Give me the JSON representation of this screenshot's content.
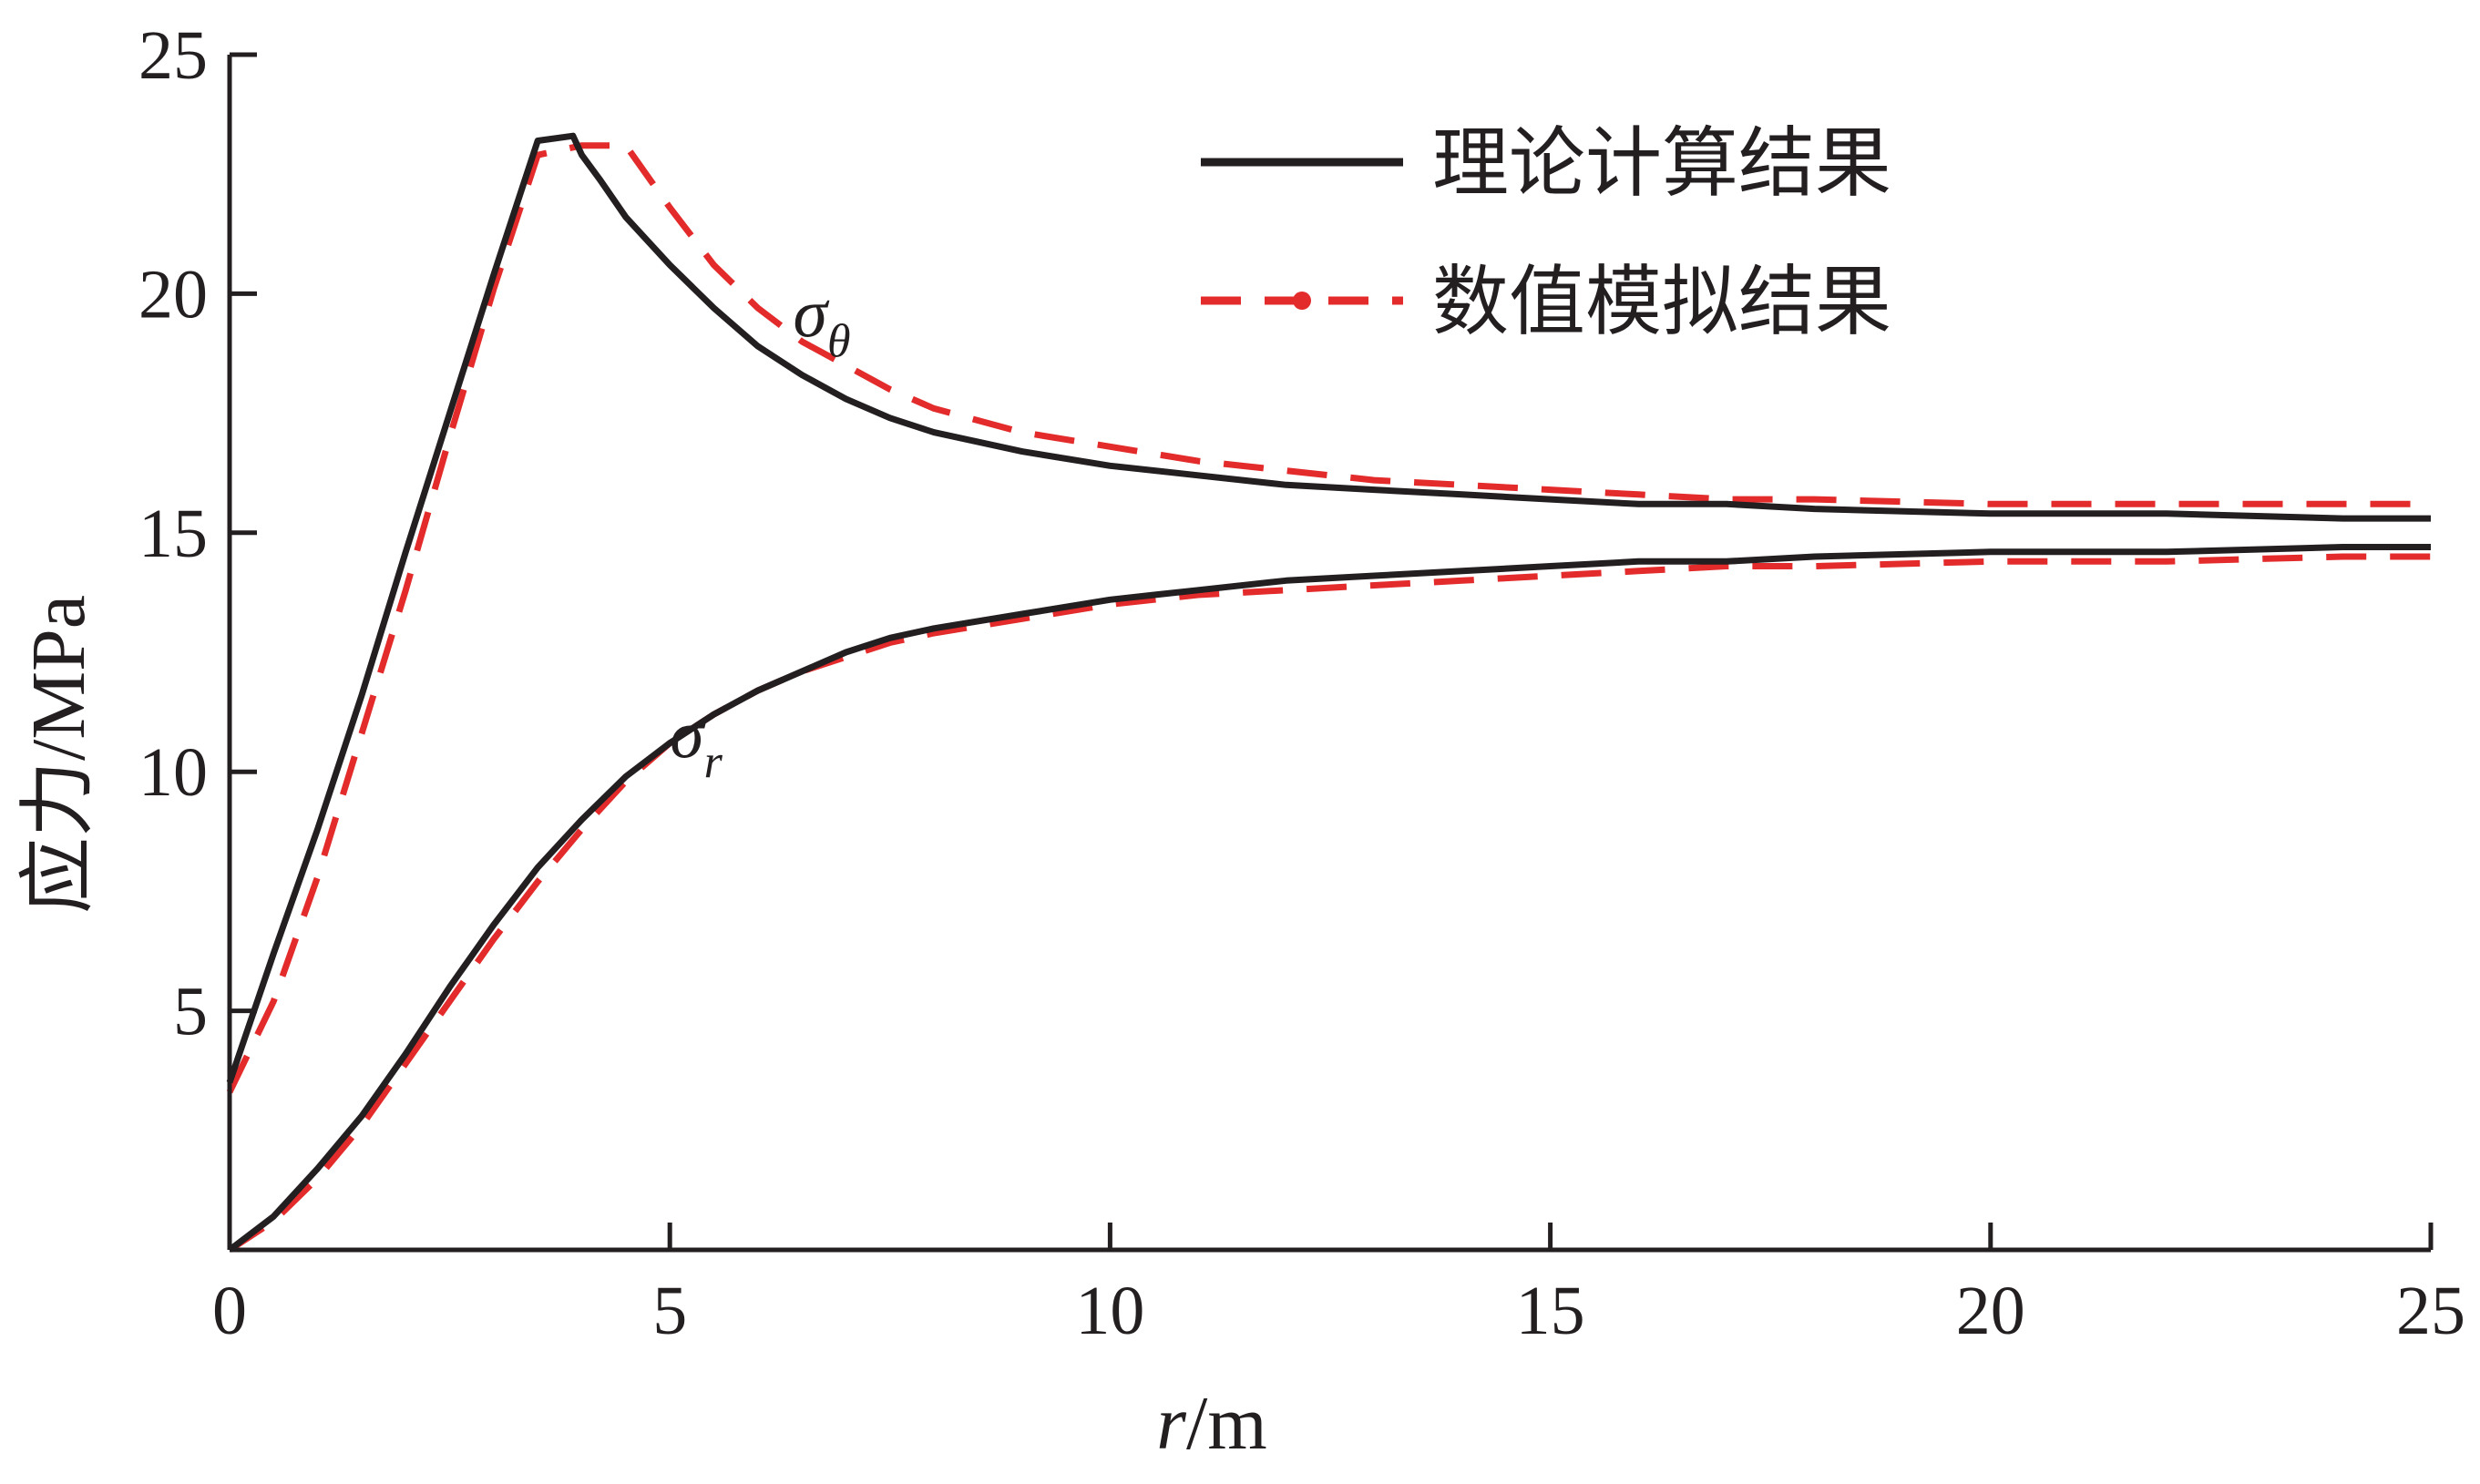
{
  "chart_data": {
    "type": "line",
    "xlabel_var": "r",
    "xlabel_unit": "/m",
    "ylabel": "应力/MPa",
    "xlim": [
      0,
      25
    ],
    "ylim": [
      0,
      25
    ],
    "xticks": [
      0,
      5,
      10,
      15,
      20,
      25
    ],
    "yticks": [
      5,
      10,
      15,
      20,
      25
    ],
    "grid": false,
    "legend_position": "top-right",
    "legend": {
      "theory": "理论计算结果",
      "numerical": "数值模拟结果"
    },
    "colors": {
      "theory": "#231f20",
      "numerical": "#e32b2b"
    },
    "annotations": [
      {
        "base": "σ",
        "sub": "θ",
        "x": 6.4,
        "y": 19.1
      },
      {
        "base": "σ",
        "sub": "r",
        "x": 5.0,
        "y": 10.3
      }
    ],
    "series": [
      {
        "key": "theory",
        "quantity": "sigma_theta",
        "x": [
          0,
          0.5,
          1.0,
          1.5,
          2.0,
          2.5,
          3.0,
          3.5,
          3.9,
          4.0,
          4.2,
          4.5,
          5.0,
          5.5,
          6.0,
          6.5,
          7.0,
          7.5,
          8.0,
          9.0,
          10.0,
          11.0,
          12.0,
          13.0,
          14.0,
          15.0,
          16.0,
          17.0,
          18.0,
          20.0,
          22.0,
          24.0,
          25.0
        ],
        "y": [
          3.5,
          6.2,
          8.8,
          11.6,
          14.6,
          17.5,
          20.4,
          23.2,
          23.3,
          22.9,
          22.4,
          21.6,
          20.6,
          19.7,
          18.9,
          18.3,
          17.8,
          17.4,
          17.1,
          16.7,
          16.4,
          16.2,
          16.0,
          15.9,
          15.8,
          15.7,
          15.6,
          15.6,
          15.5,
          15.4,
          15.4,
          15.3,
          15.3
        ]
      },
      {
        "key": "numerical",
        "quantity": "sigma_theta",
        "x": [
          0,
          0.5,
          1.0,
          1.5,
          2.0,
          2.5,
          3.0,
          3.5,
          4.0,
          4.5,
          5.0,
          5.5,
          6.0,
          6.5,
          7.0,
          7.5,
          8.0,
          9.0,
          10.0,
          11.0,
          12.0,
          13.0,
          14.0,
          15.0,
          16.0,
          17.0,
          18.0,
          20.0,
          22.0,
          24.0,
          25.0
        ],
        "y": [
          3.3,
          5.2,
          7.8,
          10.8,
          13.8,
          17.0,
          20.1,
          22.9,
          23.1,
          23.1,
          21.8,
          20.6,
          19.7,
          19.0,
          18.5,
          18.0,
          17.6,
          17.1,
          16.8,
          16.5,
          16.3,
          16.1,
          16.0,
          15.9,
          15.8,
          15.7,
          15.7,
          15.6,
          15.6,
          15.6,
          15.6
        ]
      },
      {
        "key": "theory",
        "quantity": "sigma_r",
        "x": [
          0,
          0.5,
          1.0,
          1.5,
          2.0,
          2.5,
          3.0,
          3.5,
          4.0,
          4.5,
          5.0,
          5.5,
          6.0,
          6.5,
          7.0,
          7.5,
          8.0,
          9.0,
          10.0,
          11.0,
          12.0,
          13.0,
          14.0,
          15.0,
          16.0,
          17.0,
          18.0,
          20.0,
          22.0,
          24.0,
          25.0
        ],
        "y": [
          0,
          0.7,
          1.7,
          2.8,
          4.1,
          5.5,
          6.8,
          8.0,
          9.0,
          9.9,
          10.6,
          11.2,
          11.7,
          12.1,
          12.5,
          12.8,
          13.0,
          13.3,
          13.6,
          13.8,
          14.0,
          14.1,
          14.2,
          14.3,
          14.4,
          14.4,
          14.5,
          14.6,
          14.6,
          14.7,
          14.7
        ]
      },
      {
        "key": "numerical",
        "quantity": "sigma_r",
        "x": [
          0,
          0.5,
          1.0,
          1.5,
          2.0,
          2.5,
          3.0,
          3.5,
          4.0,
          4.5,
          5.0,
          5.5,
          6.0,
          6.5,
          7.0,
          7.5,
          8.0,
          9.0,
          10.0,
          11.0,
          12.0,
          13.0,
          14.0,
          15.0,
          16.0,
          17.0,
          18.0,
          20.0,
          22.0,
          24.0,
          25.0
        ],
        "y": [
          0,
          0.6,
          1.5,
          2.6,
          3.9,
          5.2,
          6.5,
          7.7,
          8.8,
          9.8,
          10.6,
          11.2,
          11.7,
          12.1,
          12.4,
          12.7,
          12.9,
          13.2,
          13.5,
          13.7,
          13.8,
          13.9,
          14.0,
          14.1,
          14.2,
          14.3,
          14.3,
          14.4,
          14.4,
          14.5,
          14.5
        ]
      }
    ]
  }
}
